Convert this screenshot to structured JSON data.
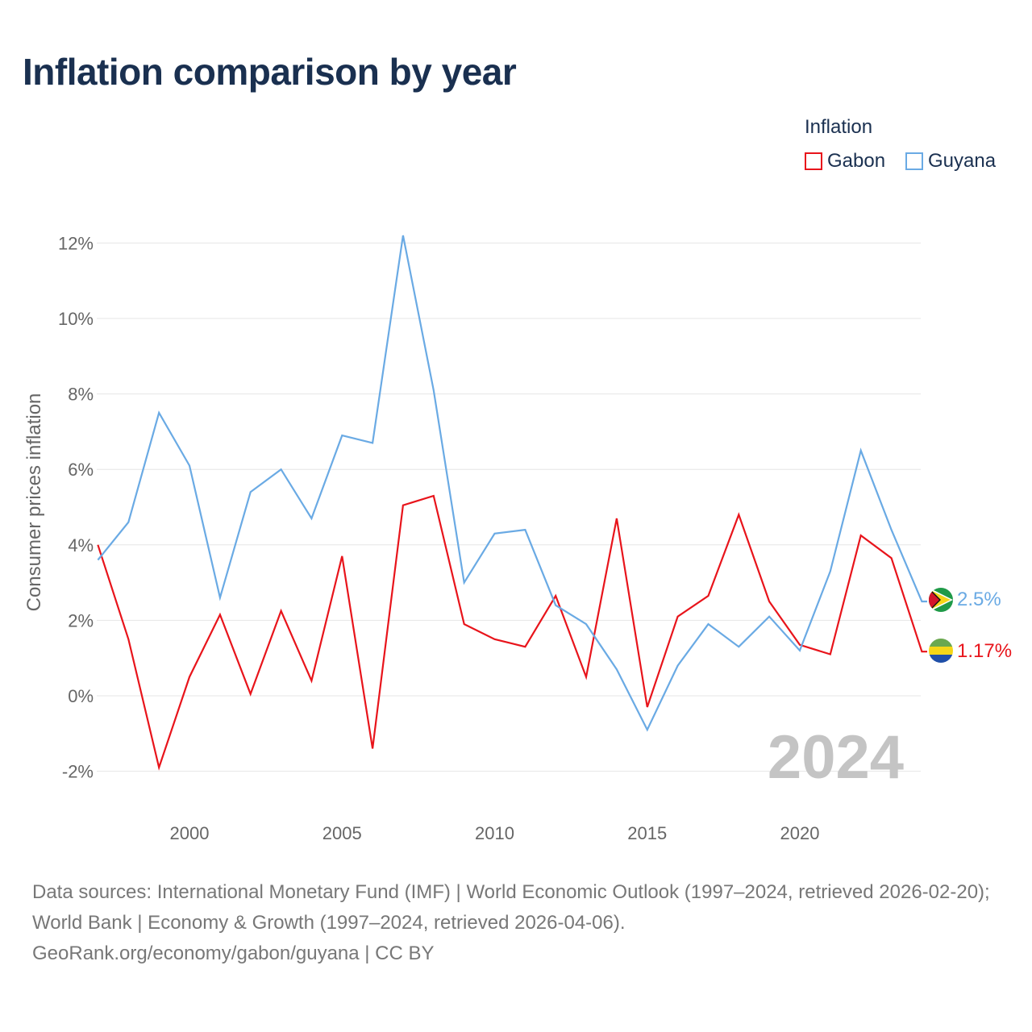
{
  "title": "Inflation comparison by year",
  "legend": {
    "title": "Inflation",
    "items": [
      {
        "name": "Gabon",
        "color": "#e8141b"
      },
      {
        "name": "Guyana",
        "color": "#6aaae4"
      }
    ]
  },
  "chart_data": {
    "type": "line",
    "title": "Inflation comparison by year",
    "xlabel": "",
    "ylabel": "Consumer prices inflation",
    "xlim": [
      1997,
      2024
    ],
    "ylim": [
      -3,
      12.5
    ],
    "x_ticks": [
      2000,
      2005,
      2010,
      2015,
      2020
    ],
    "y_ticks": [
      -2,
      0,
      2,
      4,
      6,
      8,
      10,
      12
    ],
    "y_tick_labels": [
      "-2%",
      "0%",
      "2%",
      "4%",
      "6%",
      "8%",
      "10%",
      "12%"
    ],
    "grid": true,
    "legend_position": "top-right",
    "watermark_year": "2024",
    "x": [
      1997,
      1998,
      1999,
      2000,
      2001,
      2002,
      2003,
      2004,
      2005,
      2006,
      2007,
      2008,
      2009,
      2010,
      2011,
      2012,
      2013,
      2014,
      2015,
      2016,
      2017,
      2018,
      2019,
      2020,
      2021,
      2022,
      2023,
      2024
    ],
    "series": [
      {
        "name": "Gabon",
        "color": "#e8141b",
        "end_label": "1.17%",
        "values": [
          4.0,
          1.5,
          -1.9,
          0.5,
          2.15,
          0.05,
          2.25,
          0.4,
          3.7,
          -1.4,
          5.05,
          5.3,
          1.9,
          1.5,
          1.3,
          2.65,
          0.5,
          4.7,
          -0.3,
          2.1,
          2.65,
          4.8,
          2.5,
          1.35,
          1.1,
          4.25,
          3.65,
          1.17
        ]
      },
      {
        "name": "Guyana",
        "color": "#6aaae4",
        "end_label": "2.5%",
        "values": [
          3.6,
          4.6,
          7.5,
          6.1,
          2.6,
          5.4,
          6.0,
          4.7,
          6.9,
          6.7,
          12.2,
          8.1,
          3.0,
          4.3,
          4.4,
          2.4,
          1.9,
          0.7,
          -0.9,
          0.8,
          1.9,
          1.3,
          2.1,
          1.2,
          3.3,
          6.5,
          4.4,
          2.5
        ]
      }
    ]
  },
  "footer": {
    "sources": "Data sources: International Monetary Fund (IMF) | World Economic Outlook (1997–2024, retrieved 2026-02-20); World Bank | Economy & Growth (1997–2024, retrieved 2026-04-06).",
    "credit": "GeoRank.org/economy/gabon/guyana | CC BY"
  }
}
